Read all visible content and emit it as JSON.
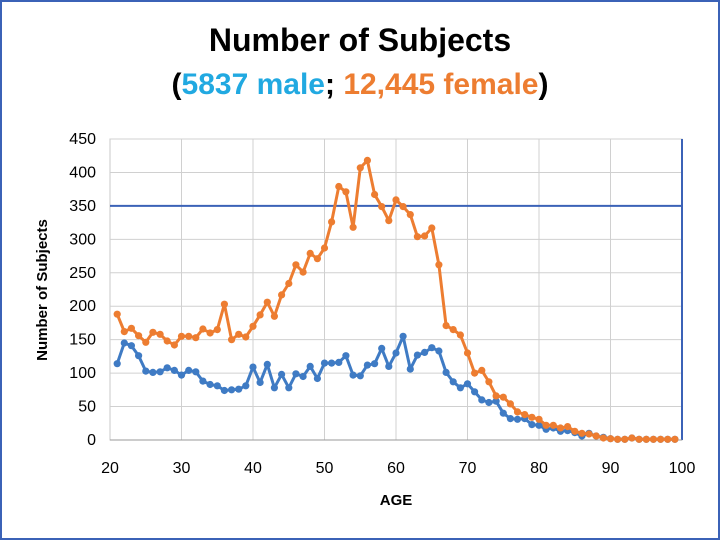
{
  "slide": {
    "title": "Number of Subjects",
    "subtitle_open": "(",
    "subtitle_male": "5837 male",
    "subtitle_sep": "; ",
    "subtitle_female": "12,445 female",
    "subtitle_close": ")",
    "colors": {
      "male": "#21a9e1",
      "female": "#ed7d31",
      "edge": "#3b62b7"
    }
  },
  "chart_data": {
    "type": "line",
    "title": "",
    "xlabel": "AGE",
    "ylabel": "Number of Subjects",
    "xlim": [
      20,
      100
    ],
    "ylim": [
      0,
      450
    ],
    "xticks": [
      "20",
      "30",
      "40",
      "50",
      "60",
      "70",
      "80",
      "90",
      "100"
    ],
    "yticks": [
      "0",
      "50",
      "100",
      "150",
      "200",
      "250",
      "300",
      "350",
      "400",
      "450"
    ],
    "grid": true,
    "legend": "none",
    "series": [
      {
        "color": "#ed7d31",
        "x": [
          21,
          22,
          23,
          24,
          25,
          26,
          27,
          28,
          29,
          30,
          31,
          32,
          33,
          34,
          35,
          36,
          37,
          38,
          39,
          40,
          41,
          42,
          43,
          44,
          45,
          46,
          47,
          48,
          49,
          50,
          51,
          52,
          53,
          54,
          55,
          56,
          57,
          58,
          59,
          60,
          61,
          62,
          63,
          64,
          65,
          66,
          67,
          68,
          69,
          70,
          71,
          72,
          73,
          74,
          75,
          76,
          77,
          78,
          79,
          80,
          81,
          82,
          83,
          84,
          85,
          86,
          87,
          88,
          89,
          90,
          91,
          92,
          93,
          94,
          95,
          96,
          97,
          98,
          99
        ],
        "values": [
          188,
          162,
          167,
          156,
          146,
          161,
          158,
          148,
          142,
          155,
          155,
          153,
          166,
          160,
          165,
          203,
          150,
          158,
          154,
          170,
          187,
          206,
          185,
          217,
          234,
          262,
          251,
          279,
          271,
          287,
          326,
          379,
          371,
          318,
          407,
          418,
          367,
          349,
          328,
          359,
          349,
          337,
          304,
          305,
          317,
          262,
          171,
          165,
          157,
          130,
          100,
          104,
          87,
          66,
          64,
          54,
          42,
          38,
          34,
          31,
          22,
          22,
          18,
          20,
          13,
          10,
          9,
          6,
          3,
          2,
          1,
          1,
          3,
          1,
          1,
          1,
          1,
          1,
          1
        ]
      },
      {
        "color": "#3f7bc4",
        "x": [
          21,
          22,
          23,
          24,
          25,
          26,
          27,
          28,
          29,
          30,
          31,
          32,
          33,
          34,
          35,
          36,
          37,
          38,
          39,
          40,
          41,
          42,
          43,
          44,
          45,
          46,
          47,
          48,
          49,
          50,
          51,
          52,
          53,
          54,
          55,
          56,
          57,
          58,
          59,
          60,
          61,
          62,
          63,
          64,
          65,
          66,
          67,
          68,
          69,
          70,
          71,
          72,
          73,
          74,
          75,
          76,
          77,
          78,
          79,
          80,
          81,
          82,
          83,
          84,
          85,
          86,
          87,
          88,
          89,
          90,
          91,
          92,
          93,
          94,
          95,
          96,
          97,
          98,
          99
        ],
        "values": [
          114,
          145,
          141,
          126,
          103,
          101,
          102,
          108,
          104,
          97,
          104,
          102,
          88,
          83,
          81,
          74,
          75,
          76,
          81,
          109,
          86,
          113,
          78,
          98,
          78,
          99,
          95,
          110,
          92,
          115,
          115,
          116,
          126,
          97,
          96,
          112,
          114,
          137,
          110,
          130,
          155,
          106,
          127,
          131,
          138,
          133,
          101,
          87,
          78,
          84,
          72,
          60,
          56,
          58,
          40,
          32,
          31,
          32,
          23,
          22,
          16,
          18,
          13,
          14,
          11,
          6,
          10,
          6,
          4,
          2,
          1,
          1,
          3,
          1,
          1,
          1,
          1,
          1,
          1
        ]
      }
    ]
  }
}
